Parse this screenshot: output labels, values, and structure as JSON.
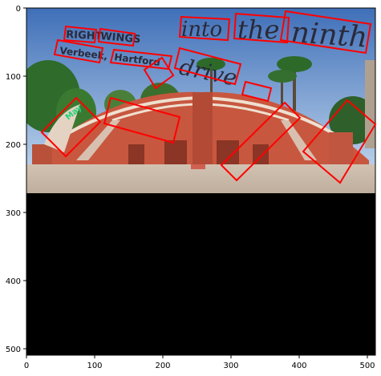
{
  "figure": {
    "axis_ticks": {
      "x": [
        "0",
        "100",
        "200",
        "300",
        "400",
        "500"
      ],
      "y": [
        "0",
        "100",
        "200",
        "300",
        "400",
        "500"
      ]
    },
    "colors": {
      "box": "#ff0000",
      "sky_top": "#3f6fb8",
      "sky_bottom": "#a8c4e4",
      "building": "#c8573f",
      "ground": "#c9b8a8",
      "pad": "#000000"
    },
    "overlay_text": {
      "w1": "RIGHT",
      "w2": "WINGS",
      "w3": "Verbeek,",
      "w4": "Hartford",
      "w5": "into",
      "w6": "the",
      "w7": "ninth",
      "w8": "drive",
      "w9": "May"
    }
  }
}
